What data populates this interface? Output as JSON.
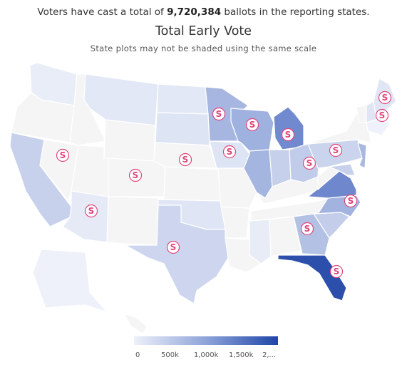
{
  "header": {
    "summary_prefix": "Voters have cast a total of ",
    "summary_total": "9,720,384",
    "summary_suffix": " ballots in the reporting states.",
    "title": "Total Early Vote",
    "subtitle": "State plots may not be shaded using the same scale"
  },
  "legend": {
    "ticks": [
      "0",
      "500k",
      "1,000k",
      "1,500k",
      "2,..."
    ],
    "colors": {
      "low": "#eef1fa",
      "mid": "#8ea3d9",
      "high": "#1f45a8"
    }
  },
  "marker_label": "S",
  "colors": {
    "no_data": "#f5f5f5",
    "marker": "#e0457b",
    "border": "#ffffff"
  },
  "states": [
    {
      "code": "WA",
      "shade": "#e9edf8",
      "marker": false
    },
    {
      "code": "OR",
      "shade": "#f5f5f5",
      "marker": false
    },
    {
      "code": "CA",
      "shade": "#c7d1ec",
      "marker": false
    },
    {
      "code": "NV",
      "shade": "#f5f5f5",
      "marker": true
    },
    {
      "code": "ID",
      "shade": "#f5f5f5",
      "marker": false
    },
    {
      "code": "MT",
      "shade": "#e3e8f6",
      "marker": false
    },
    {
      "code": "WY",
      "shade": "#f5f5f5",
      "marker": false
    },
    {
      "code": "UT",
      "shade": "#f5f5f5",
      "marker": false
    },
    {
      "code": "AZ",
      "shade": "#e6eaf7",
      "marker": true
    },
    {
      "code": "CO",
      "shade": "#f5f5f5",
      "marker": true
    },
    {
      "code": "NM",
      "shade": "#f5f5f5",
      "marker": false
    },
    {
      "code": "ND",
      "shade": "#e3e8f6",
      "marker": false
    },
    {
      "code": "SD",
      "shade": "#dde4f4",
      "marker": false
    },
    {
      "code": "NE",
      "shade": "#f5f5f5",
      "marker": true
    },
    {
      "code": "KS",
      "shade": "#f5f5f5",
      "marker": false
    },
    {
      "code": "OK",
      "shade": "#dfe5f4",
      "marker": false
    },
    {
      "code": "TX",
      "shade": "#cdd6ee",
      "marker": true
    },
    {
      "code": "MN",
      "shade": "#a6b6e1",
      "marker": true
    },
    {
      "code": "IA",
      "shade": "#dde4f4",
      "marker": true
    },
    {
      "code": "MO",
      "shade": "#f5f5f5",
      "marker": false
    },
    {
      "code": "AR",
      "shade": "#f5f5f5",
      "marker": false
    },
    {
      "code": "LA",
      "shade": "#f5f5f5",
      "marker": false
    },
    {
      "code": "WI",
      "shade": "#9fb1df",
      "marker": true
    },
    {
      "code": "IL",
      "shade": "#a4b5e0",
      "marker": false
    },
    {
      "code": "MI",
      "shade": "#7189cf",
      "marker": true
    },
    {
      "code": "IN",
      "shade": "#c6d0eb",
      "marker": false
    },
    {
      "code": "OH",
      "shade": "#c1ccea",
      "marker": true
    },
    {
      "code": "KY",
      "shade": "#f5f5f5",
      "marker": false
    },
    {
      "code": "TN",
      "shade": "#f5f5f5",
      "marker": false
    },
    {
      "code": "MS",
      "shade": "#e8ecf7",
      "marker": false
    },
    {
      "code": "AL",
      "shade": "#f5f5f5",
      "marker": false
    },
    {
      "code": "GA",
      "shade": "#b3c1e5",
      "marker": true
    },
    {
      "code": "FL",
      "shade": "#2b4fab",
      "marker": true
    },
    {
      "code": "SC",
      "shade": "#c4ceeb",
      "marker": false
    },
    {
      "code": "NC",
      "shade": "#a2b3df",
      "marker": true
    },
    {
      "code": "VA",
      "shade": "#6e87cd",
      "marker": false
    },
    {
      "code": "WV",
      "shade": "#f5f5f5",
      "marker": false
    },
    {
      "code": "PA",
      "shade": "#cad4ed",
      "marker": true
    },
    {
      "code": "NY",
      "shade": "#f5f5f5",
      "marker": false
    },
    {
      "code": "NJ",
      "shade": "#a9b8e1",
      "marker": false
    },
    {
      "code": "MD",
      "shade": "#c7d1ec",
      "marker": false
    },
    {
      "code": "VT",
      "shade": "#f5f5f5",
      "marker": false
    },
    {
      "code": "NH",
      "shade": "#dfe5f4",
      "marker": false
    },
    {
      "code": "ME",
      "shade": "#e1e6f5",
      "marker": true
    },
    {
      "code": "MA",
      "shade": "#eff2fa",
      "marker": true
    },
    {
      "code": "AK",
      "shade": "#eef1fa",
      "marker": false
    },
    {
      "code": "HI",
      "shade": "#f5f5f5",
      "marker": false
    }
  ]
}
